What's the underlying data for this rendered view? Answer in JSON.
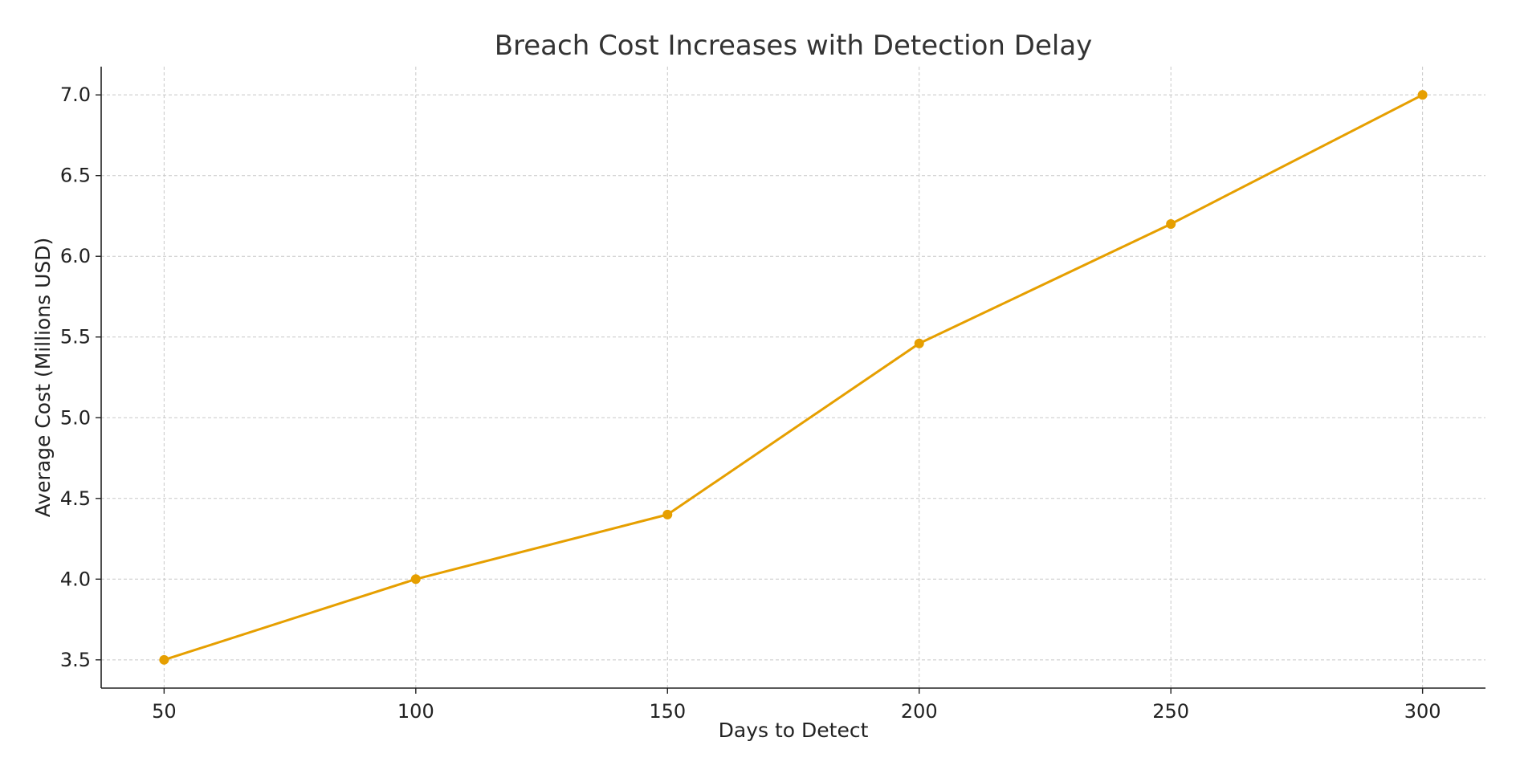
{
  "chart_data": {
    "type": "line",
    "title": "Breach Cost Increases with Detection Delay",
    "xlabel": "Days to Detect",
    "ylabel": "Average Cost (Millions USD)",
    "x": [
      50,
      100,
      150,
      200,
      250,
      300
    ],
    "series": [
      {
        "values": [
          3.5,
          4.0,
          4.4,
          5.46,
          6.2,
          7.0
        ],
        "color": "#E69F00"
      }
    ],
    "xticks": [
      50,
      100,
      150,
      200,
      250,
      300
    ],
    "yticks": [
      3.5,
      4.0,
      4.5,
      5.0,
      5.5,
      6.0,
      6.5,
      7.0
    ],
    "ytick_labels": [
      "3.5",
      "4.0",
      "4.5",
      "5.0",
      "5.5",
      "6.0",
      "6.5",
      "7.0"
    ],
    "xlim": [
      37.5,
      312.5
    ],
    "ylim": [
      3.325,
      7.175
    ],
    "grid": true,
    "marker": "circle"
  }
}
